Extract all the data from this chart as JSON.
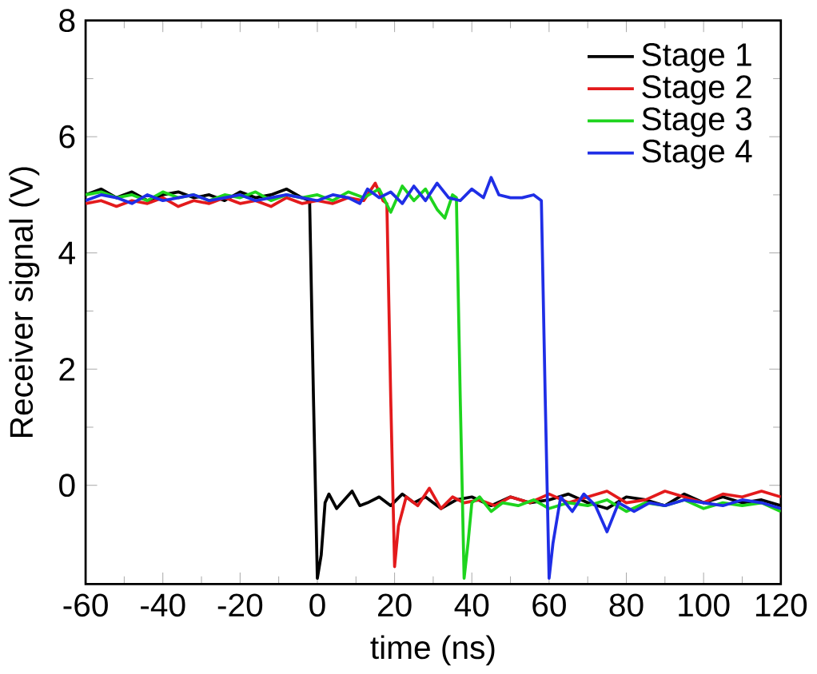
{
  "chart_data": {
    "type": "line",
    "xlabel": "time (ns)",
    "ylabel": "Receiver signal (V)",
    "xlim": [
      -60,
      120
    ],
    "ylim": [
      -1.7,
      8
    ],
    "xticks": [
      -60,
      -40,
      -20,
      0,
      20,
      40,
      60,
      80,
      100,
      120
    ],
    "yticks": [
      0,
      2,
      4,
      6,
      8
    ],
    "legend": "top right",
    "grid": false,
    "series": [
      {
        "name": "Stage 1",
        "color": "#000000",
        "x": [
          -60,
          -56,
          -52,
          -48,
          -44,
          -40,
          -36,
          -32,
          -28,
          -24,
          -20,
          -16,
          -12,
          -8,
          -4,
          -2,
          -1,
          0,
          1,
          2,
          3,
          5,
          7,
          9,
          11,
          13,
          16,
          19,
          22,
          25,
          28,
          32,
          36,
          40,
          45,
          50,
          55,
          60,
          65,
          70,
          75,
          80,
          85,
          90,
          95,
          100,
          105,
          110,
          115,
          120
        ],
        "values": [
          5.0,
          5.1,
          4.95,
          5.05,
          4.9,
          5.0,
          5.05,
          4.95,
          5.0,
          4.9,
          5.05,
          4.95,
          5.0,
          5.1,
          4.95,
          4.9,
          1.5,
          -1.6,
          -1.2,
          -0.3,
          -0.15,
          -0.4,
          -0.25,
          -0.1,
          -0.35,
          -0.3,
          -0.2,
          -0.35,
          -0.15,
          -0.3,
          -0.2,
          -0.4,
          -0.25,
          -0.2,
          -0.35,
          -0.2,
          -0.3,
          -0.25,
          -0.15,
          -0.3,
          -0.4,
          -0.2,
          -0.25,
          -0.35,
          -0.15,
          -0.3,
          -0.2,
          -0.3,
          -0.25,
          -0.35
        ]
      },
      {
        "name": "Stage 2",
        "color": "#e31a1c",
        "x": [
          -60,
          -56,
          -52,
          -48,
          -44,
          -40,
          -36,
          -32,
          -28,
          -24,
          -20,
          -16,
          -12,
          -8,
          -4,
          0,
          4,
          8,
          12,
          15,
          17,
          18,
          19,
          20,
          21,
          23,
          26,
          29,
          32,
          35,
          38,
          42,
          46,
          50,
          55,
          60,
          65,
          70,
          75,
          80,
          85,
          90,
          95,
          100,
          105,
          110,
          115,
          120
        ],
        "values": [
          4.85,
          4.9,
          4.8,
          4.9,
          4.85,
          4.95,
          4.8,
          4.9,
          4.85,
          4.95,
          4.85,
          4.9,
          4.8,
          4.95,
          4.85,
          4.9,
          4.85,
          4.95,
          4.9,
          5.2,
          4.9,
          4.85,
          1.5,
          -1.4,
          -0.7,
          -0.2,
          -0.35,
          -0.05,
          -0.4,
          -0.2,
          -0.3,
          -0.25,
          -0.35,
          -0.2,
          -0.3,
          -0.15,
          -0.3,
          -0.2,
          -0.1,
          -0.3,
          -0.25,
          -0.1,
          -0.2,
          -0.3,
          -0.15,
          -0.2,
          -0.1,
          -0.2
        ]
      },
      {
        "name": "Stage 3",
        "color": "#1ed41e",
        "x": [
          -60,
          -56,
          -52,
          -48,
          -44,
          -40,
          -36,
          -32,
          -28,
          -24,
          -20,
          -16,
          -12,
          -8,
          -4,
          0,
          4,
          8,
          12,
          16,
          19,
          22,
          25,
          28,
          31,
          33,
          35,
          36,
          37,
          38,
          39,
          40,
          42,
          45,
          48,
          52,
          56,
          60,
          65,
          70,
          75,
          80,
          85,
          90,
          95,
          100,
          105,
          110,
          115,
          120
        ],
        "values": [
          5.0,
          5.05,
          4.95,
          5.0,
          4.9,
          5.05,
          4.95,
          5.0,
          4.9,
          5.0,
          4.95,
          5.05,
          4.9,
          5.0,
          4.95,
          5.0,
          4.9,
          5.05,
          4.95,
          5.1,
          4.7,
          5.15,
          4.9,
          5.1,
          4.75,
          4.6,
          5.0,
          4.95,
          1.5,
          -1.6,
          -1.0,
          -0.3,
          -0.2,
          -0.45,
          -0.3,
          -0.35,
          -0.25,
          -0.4,
          -0.3,
          -0.35,
          -0.25,
          -0.45,
          -0.3,
          -0.35,
          -0.25,
          -0.4,
          -0.3,
          -0.35,
          -0.3,
          -0.45
        ]
      },
      {
        "name": "Stage 4",
        "color": "#1f2ee6",
        "x": [
          -60,
          -56,
          -52,
          -48,
          -44,
          -40,
          -36,
          -32,
          -28,
          -24,
          -20,
          -16,
          -12,
          -8,
          -4,
          0,
          4,
          8,
          11,
          13,
          16,
          19,
          22,
          25,
          28,
          31,
          34,
          37,
          40,
          43,
          45,
          47,
          50,
          53,
          56,
          58,
          59,
          60,
          61,
          63,
          66,
          69,
          72,
          75,
          78,
          82,
          86,
          90,
          95,
          100,
          105,
          110,
          115,
          120
        ],
        "values": [
          4.9,
          5.0,
          4.95,
          4.85,
          5.0,
          4.9,
          4.95,
          5.0,
          4.9,
          4.95,
          5.0,
          4.9,
          4.95,
          5.0,
          4.95,
          4.9,
          5.0,
          4.95,
          4.85,
          5.1,
          4.95,
          5.05,
          4.85,
          5.15,
          4.9,
          5.2,
          4.95,
          4.9,
          5.1,
          4.95,
          5.3,
          5.0,
          4.95,
          4.95,
          5.0,
          4.9,
          1.5,
          -1.6,
          -1.0,
          -0.2,
          -0.45,
          -0.15,
          -0.35,
          -0.8,
          -0.3,
          -0.45,
          -0.3,
          -0.35,
          -0.25,
          -0.3,
          -0.35,
          -0.25,
          -0.3,
          -0.4
        ]
      }
    ]
  }
}
